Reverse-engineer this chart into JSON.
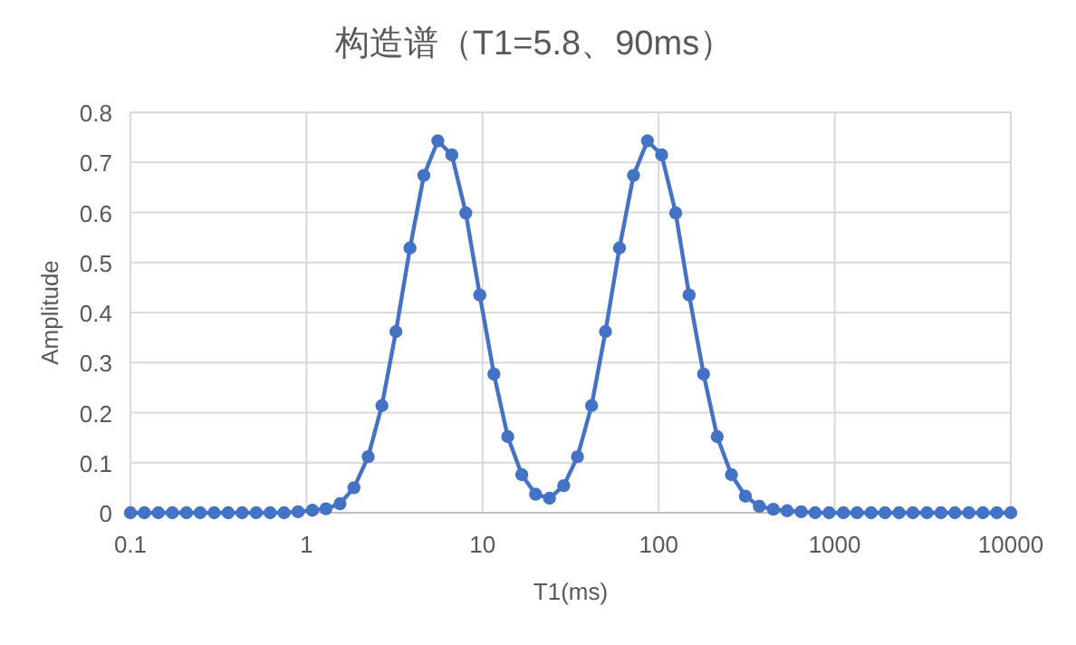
{
  "chart_data": {
    "type": "line",
    "title": "构造谱（T1=5.8、90ms）",
    "xlabel": "T1(ms)",
    "ylabel": "Amplitude",
    "log": "x",
    "xlim": [
      0.1,
      10000
    ],
    "xticks": [
      0.1,
      1,
      10,
      100,
      1000,
      10000
    ],
    "ylim": [
      0,
      0.8
    ],
    "yticks": [
      0,
      0.1,
      0.2,
      0.3,
      0.4,
      0.5,
      0.6,
      0.7,
      0.8
    ],
    "grid": true,
    "marker": "circle",
    "line_style": "solid",
    "x": [
      0.1,
      0.12,
      0.144,
      0.173,
      0.208,
      0.249,
      0.299,
      0.359,
      0.431,
      0.518,
      0.622,
      0.746,
      0.896,
      1.08,
      1.29,
      1.55,
      1.86,
      2.24,
      2.68,
      3.22,
      3.87,
      4.64,
      5.57,
      6.69,
      8.03,
      9.64,
      11.6,
      13.9,
      16.7,
      20.0,
      24.0,
      28.9,
      34.6,
      41.6,
      49.9,
      59.9,
      72.0,
      86.4,
      104,
      125,
      149,
      180,
      215,
      259,
      311,
      373,
      448,
      537,
      645,
      774,
      929,
      1120,
      1340,
      1610,
      1930,
      2320,
      2780,
      3340,
      4010,
      4810,
      5780,
      6940,
      8330,
      10000
    ],
    "series": [
      {
        "color": "#4472c4",
        "values": [
          0,
          0,
          0,
          0,
          0,
          0,
          0,
          0,
          0,
          0,
          0,
          0,
          0.002,
          0.005,
          0.008,
          0.018,
          0.05,
          0.112,
          0.214,
          0.362,
          0.529,
          0.674,
          0.743,
          0.715,
          0.599,
          0.435,
          0.277,
          0.152,
          0.076,
          0.037,
          0.029,
          0.054,
          0.112,
          0.214,
          0.362,
          0.529,
          0.674,
          0.743,
          0.715,
          0.599,
          0.435,
          0.277,
          0.152,
          0.076,
          0.033,
          0.013,
          0.007,
          0.004,
          0.002,
          0,
          0,
          0,
          0,
          0,
          0,
          0,
          0,
          0,
          0,
          0,
          0,
          0,
          0,
          0
        ]
      }
    ]
  }
}
